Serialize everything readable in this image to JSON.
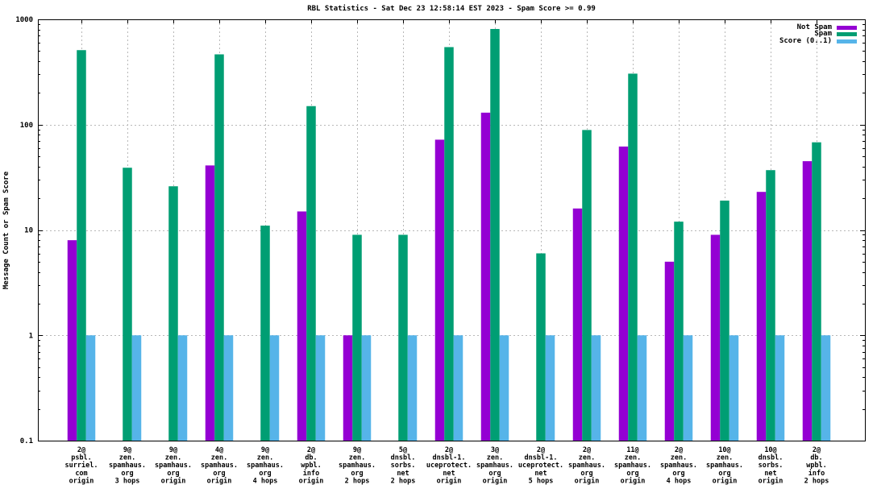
{
  "chart_data": {
    "type": "bar",
    "title": "RBL Statistics - Sat Dec 23 12:58:14 EST 2023 - Spam Score >= 0.99",
    "xlabel": "",
    "ylabel": "Message Count or Spam Score",
    "y_scale": "log",
    "ylim": [
      0.1,
      1000
    ],
    "grid": true,
    "legend_position": "top-right",
    "grid_color": "#b8b8b8",
    "axis_color": "#000000",
    "y_ticks": [
      {
        "v": 1000,
        "label": "1000"
      },
      {
        "v": 100,
        "label": "100"
      },
      {
        "v": 10,
        "label": "10"
      },
      {
        "v": 1,
        "label": "1"
      },
      {
        "v": 0.1,
        "label": "0.1"
      }
    ],
    "categories": [
      [
        "2@",
        "psbl.",
        "surriel.",
        "com",
        "origin"
      ],
      [
        "9@",
        "zen.",
        "spamhaus.",
        "org",
        "3 hops"
      ],
      [
        "9@",
        "zen.",
        "spamhaus.",
        "org",
        "origin"
      ],
      [
        "4@",
        "zen.",
        "spamhaus.",
        "org",
        "origin"
      ],
      [
        "9@",
        "zen.",
        "spamhaus.",
        "org",
        "4 hops"
      ],
      [
        "2@",
        "db.",
        "wpbl.",
        "info",
        "origin"
      ],
      [
        "9@",
        "zen.",
        "spamhaus.",
        "org",
        "2 hops"
      ],
      [
        "5@",
        "dnsbl.",
        "sorbs.",
        "net",
        "2 hops"
      ],
      [
        "2@",
        "dnsbl-1.",
        "uceprotect.",
        "net",
        "origin"
      ],
      [
        "3@",
        "zen.",
        "spamhaus.",
        "org",
        "origin"
      ],
      [
        "2@",
        "dnsbl-1.",
        "uceprotect.",
        "net",
        "5 hops"
      ],
      [
        "2@",
        "zen.",
        "spamhaus.",
        "org",
        "origin"
      ],
      [
        "11@",
        "zen.",
        "spamhaus.",
        "org",
        "origin"
      ],
      [
        "2@",
        "zen.",
        "spamhaus.",
        "org",
        "4 hops"
      ],
      [
        "10@",
        "zen.",
        "spamhaus.",
        "org",
        "origin"
      ],
      [
        "10@",
        "dnsbl.",
        "sorbs.",
        "net",
        "origin"
      ],
      [
        "2@",
        "db.",
        "wpbl.",
        "info",
        "2 hops"
      ]
    ],
    "series": [
      {
        "name": "Not Spam",
        "color": "#9400d3",
        "values": [
          8,
          null,
          null,
          41,
          null,
          15,
          1,
          null,
          72,
          130,
          null,
          16,
          62,
          5,
          9,
          23,
          45
        ]
      },
      {
        "name": "Spam",
        "color": "#009e73",
        "values": [
          510,
          39,
          26,
          465,
          11,
          150,
          9,
          9,
          545,
          810,
          6,
          89,
          305,
          12,
          19,
          37,
          68
        ]
      },
      {
        "name": "Score (0..1)",
        "color": "#56b4e9",
        "values": [
          1,
          1,
          1,
          1,
          1,
          1,
          1,
          1,
          1,
          1,
          1,
          1,
          1,
          1,
          1,
          1,
          1
        ]
      }
    ]
  }
}
